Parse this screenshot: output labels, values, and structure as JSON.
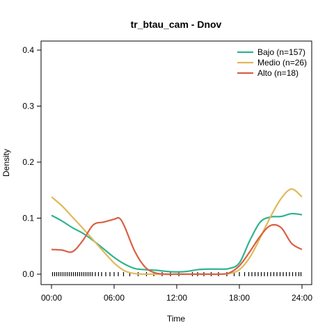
{
  "chart_data": {
    "type": "line",
    "title": "tr_btau_cam - Dnov",
    "xlabel": "Time",
    "ylabel": "Density",
    "xlim": [
      0,
      24
    ],
    "ylim": [
      0,
      0.4
    ],
    "x_ticks": [
      {
        "value": 0,
        "label": "00:00"
      },
      {
        "value": 6,
        "label": "06:00"
      },
      {
        "value": 12,
        "label": "12:00"
      },
      {
        "value": 18,
        "label": "18:00"
      },
      {
        "value": 24,
        "label": "24:00"
      }
    ],
    "y_ticks": [
      {
        "value": 0,
        "label": "0.0"
      },
      {
        "value": 0.1,
        "label": "0.1"
      },
      {
        "value": 0.2,
        "label": "0.2"
      },
      {
        "value": 0.3,
        "label": "0.3"
      },
      {
        "value": 0.4,
        "label": "0.4"
      }
    ],
    "legend_position": "top-right",
    "series": [
      {
        "name": "Bajo (n=157)",
        "color": "#2fb38f",
        "points": [
          [
            0,
            0.105
          ],
          [
            1,
            0.095
          ],
          [
            2,
            0.083
          ],
          [
            3,
            0.073
          ],
          [
            4,
            0.06
          ],
          [
            5,
            0.045
          ],
          [
            6,
            0.03
          ],
          [
            7,
            0.018
          ],
          [
            8,
            0.01
          ],
          [
            9,
            0.008
          ],
          [
            10,
            0.007
          ],
          [
            11,
            0.005
          ],
          [
            12,
            0.004
          ],
          [
            13,
            0.005
          ],
          [
            14,
            0.008
          ],
          [
            15,
            0.009
          ],
          [
            16,
            0.009
          ],
          [
            17,
            0.01
          ],
          [
            18,
            0.02
          ],
          [
            19,
            0.06
          ],
          [
            20,
            0.093
          ],
          [
            21,
            0.102
          ],
          [
            22,
            0.103
          ],
          [
            23,
            0.108
          ],
          [
            24,
            0.106
          ]
        ]
      },
      {
        "name": "Medio (n=26)",
        "color": "#e0b85a",
        "points": [
          [
            0,
            0.138
          ],
          [
            1,
            0.122
          ],
          [
            2,
            0.102
          ],
          [
            3,
            0.082
          ],
          [
            4,
            0.061
          ],
          [
            5,
            0.04
          ],
          [
            6,
            0.02
          ],
          [
            7,
            0.006
          ],
          [
            8,
            0.001
          ],
          [
            9,
            0.0
          ],
          [
            10,
            0.0
          ],
          [
            11,
            0.0
          ],
          [
            12,
            0.0
          ],
          [
            13,
            0.0
          ],
          [
            14,
            0.0
          ],
          [
            15,
            0.0
          ],
          [
            16,
            0.0
          ],
          [
            17,
            0.001
          ],
          [
            18,
            0.008
          ],
          [
            19,
            0.03
          ],
          [
            20,
            0.065
          ],
          [
            21,
            0.103
          ],
          [
            22,
            0.135
          ],
          [
            23,
            0.152
          ],
          [
            24,
            0.138
          ]
        ]
      },
      {
        "name": "Alto (n=18)",
        "color": "#d95f43",
        "points": [
          [
            0,
            0.044
          ],
          [
            1,
            0.043
          ],
          [
            2,
            0.04
          ],
          [
            3,
            0.06
          ],
          [
            4,
            0.088
          ],
          [
            5,
            0.093
          ],
          [
            6,
            0.098
          ],
          [
            6.5,
            0.1
          ],
          [
            7,
            0.085
          ],
          [
            8,
            0.04
          ],
          [
            9,
            0.012
          ],
          [
            10,
            0.002
          ],
          [
            11,
            0.0
          ],
          [
            12,
            0.0
          ],
          [
            13,
            0.0
          ],
          [
            14,
            0.0
          ],
          [
            15,
            0.0
          ],
          [
            16,
            0.0
          ],
          [
            17,
            0.002
          ],
          [
            18,
            0.015
          ],
          [
            19,
            0.04
          ],
          [
            20,
            0.068
          ],
          [
            21,
            0.087
          ],
          [
            22,
            0.083
          ],
          [
            23,
            0.055
          ],
          [
            24,
            0.044
          ]
        ]
      }
    ],
    "rug": [
      0.1,
      0.3,
      0.5,
      0.7,
      0.9,
      1.1,
      1.3,
      1.5,
      1.7,
      1.9,
      2.1,
      2.3,
      2.5,
      2.7,
      2.9,
      3.1,
      3.3,
      3.5,
      3.7,
      3.9,
      4.2,
      4.5,
      4.8,
      5.2,
      5.6,
      6.0,
      6.4,
      6.9,
      7.5,
      8.3,
      9.1,
      9.8,
      10.6,
      11.4,
      12.2,
      13.5,
      14.0,
      14.6,
      15.3,
      16.0,
      16.8,
      17.5,
      18.0,
      18.5,
      18.9,
      19.2,
      19.5,
      19.8,
      20.1,
      20.4,
      20.7,
      21.0,
      21.3,
      21.6,
      21.9,
      22.2,
      22.5,
      22.8,
      23.1,
      23.4,
      23.7,
      23.9
    ]
  }
}
